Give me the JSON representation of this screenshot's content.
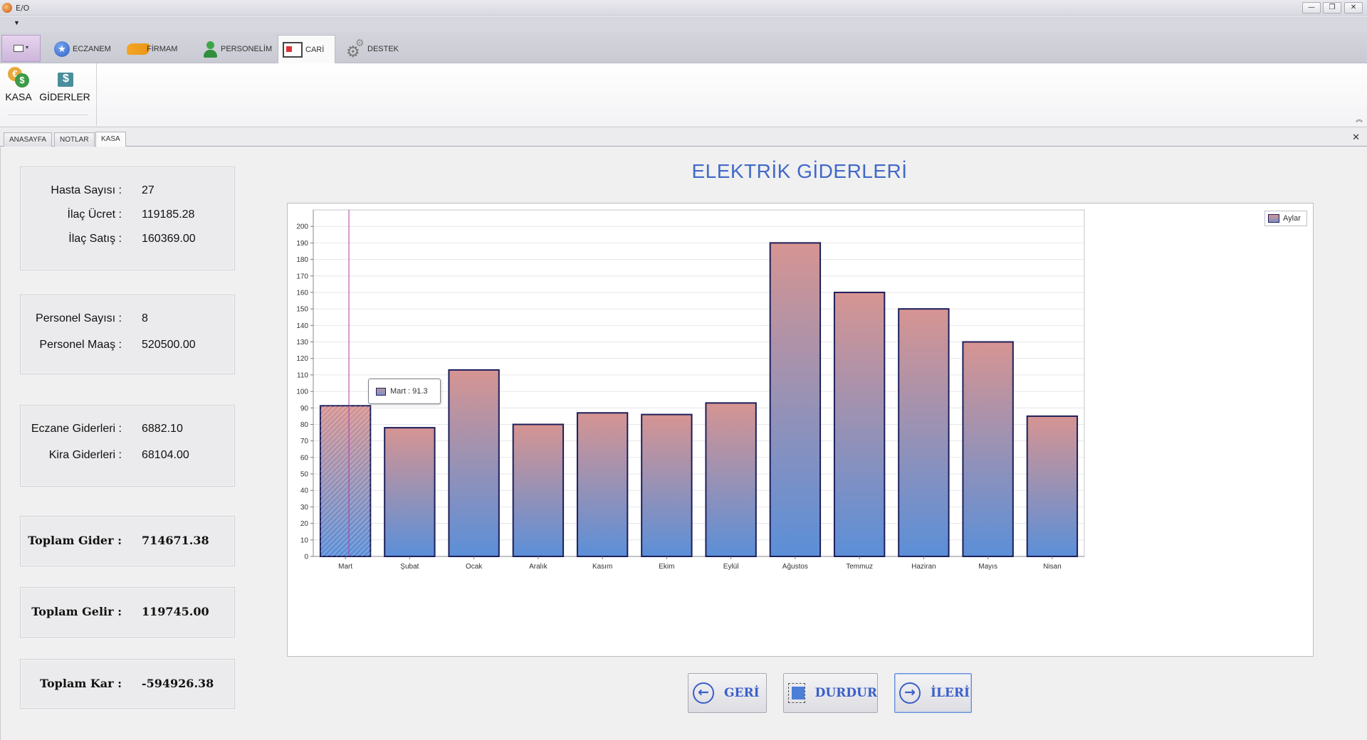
{
  "window": {
    "title": "E/O"
  },
  "ribbon": {
    "tabs": [
      {
        "label": "ECZANEM",
        "icon": "star-icon"
      },
      {
        "label": "FİRMAM",
        "icon": "handshake-icon"
      },
      {
        "label": "PERSONELİM",
        "icon": "person-icon"
      },
      {
        "label": "CARİ",
        "icon": "cart-icon",
        "active": true
      },
      {
        "label": "DESTEK",
        "icon": "gear-icon"
      }
    ],
    "buttons": [
      {
        "label": "KASA",
        "icon": "money-icon"
      },
      {
        "label": "GİDERLER",
        "icon": "expense-icon"
      }
    ]
  },
  "doc_tabs": [
    {
      "label": "ANASAYFA"
    },
    {
      "label": "NOTLAR"
    },
    {
      "label": "KASA",
      "active": true
    }
  ],
  "summary": {
    "group1": [
      {
        "label": "Hasta Sayısı :",
        "value": "27"
      },
      {
        "label": "İlaç Ücret :",
        "value": "119185.28"
      },
      {
        "label": "İlaç Satış :",
        "value": "160369.00"
      }
    ],
    "group2": [
      {
        "label": "Personel Sayısı :",
        "value": "8"
      },
      {
        "label": "Personel Maaş :",
        "value": "520500.00"
      }
    ],
    "group3": [
      {
        "label": "Eczane Giderleri :",
        "value": "6882.10"
      },
      {
        "label": "Kira Giderleri :",
        "value": "68104.00"
      }
    ],
    "total_expense": {
      "label": "Toplam Gider :",
      "value": "714671.38"
    },
    "total_income": {
      "label": "Toplam Gelir :",
      "value": "119745.00"
    },
    "total_profit": {
      "label": "Toplam Kar :",
      "value": "-594926.38"
    }
  },
  "tooltip": {
    "text": "Mart : 91.3"
  },
  "nav": {
    "back": "GERİ",
    "stop": "DURDUR",
    "next": "İLERİ"
  },
  "colors": {
    "title": "#4169c8",
    "bar_top": "#d69492",
    "bar_bottom": "#5b8fd8",
    "bar_border": "#1d1f5a",
    "crosshair": "#b03aa8"
  },
  "chart_data": {
    "type": "bar",
    "title": "ELEKTRİK GİDERLERİ",
    "categories": [
      "Mart",
      "Şubat",
      "Ocak",
      "Aralık",
      "Kasım",
      "Ekim",
      "Eylül",
      "Ağustos",
      "Temmuz",
      "Haziran",
      "Mayıs",
      "Nisan"
    ],
    "series": [
      {
        "name": "Aylar",
        "values": [
          91.3,
          78,
          113,
          80,
          87,
          86,
          93,
          190,
          160,
          150,
          130,
          85
        ]
      }
    ],
    "ylim": [
      0,
      200
    ],
    "ytick_step": 10,
    "grid": true,
    "legend": "top-right",
    "highlighted_index": 0
  }
}
